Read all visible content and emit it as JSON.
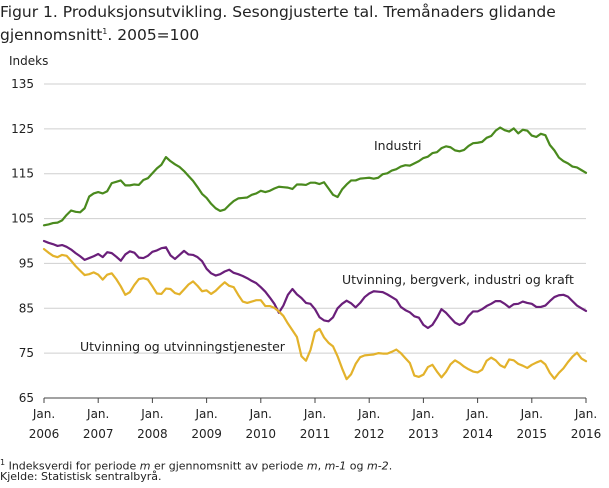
{
  "title_main": "Figur 1. Produksjonsutvikling. Sesongjusterte tal. Tremånaders glidande gjennomsnitt",
  "title_sup": "1",
  "title_suffix": ". 2005=100",
  "footnote": {
    "marker": "1",
    "text_before": " Indeksverdi for periode ",
    "m1": "m",
    "text_mid1": " er gjennomsnitt av periode ",
    "m2": "m",
    "text_mid2": ", ",
    "m3": "m-1",
    "text_mid3": " og ",
    "m4": "m-2",
    "text_end": "."
  },
  "source": "Kjelde: Statistisk sentralbyrå.",
  "colors": {
    "industri": "#4a8a1e",
    "utvinning_bergverk": "#6a1f7a",
    "utvinningstjenester": "#e3b22b",
    "grid": "#cfcfcf",
    "axis": "#444444"
  },
  "chart_data": {
    "type": "line",
    "ylabel": "Indeks",
    "ylim": [
      65,
      135
    ],
    "y_ticks": [
      65,
      75,
      85,
      95,
      105,
      115,
      125,
      135
    ],
    "x_tick_labels": [
      {
        "month": "Jan.",
        "year": "2006"
      },
      {
        "month": "Jan.",
        "year": "2007"
      },
      {
        "month": "Jan.",
        "year": "2008"
      },
      {
        "month": "Jan.",
        "year": "2009"
      },
      {
        "month": "Jan.",
        "year": "2010"
      },
      {
        "month": "Jan.",
        "year": "2011"
      },
      {
        "month": "Jan.",
        "year": "2012"
      },
      {
        "month": "Jan.",
        "year": "2013"
      },
      {
        "month": "Jan.",
        "year": "2014"
      },
      {
        "month": "Jan.",
        "year": "2015"
      },
      {
        "month": "Jan.",
        "year": "2016"
      }
    ],
    "x_start": "2006-01",
    "grid": true,
    "series": [
      {
        "name": "Industri",
        "color_key": "industri",
        "values": [
          103.5,
          103.7,
          104.0,
          104.1,
          104.6,
          105.8,
          106.8,
          106.5,
          106.4,
          107.3,
          109.9,
          110.6,
          110.9,
          110.6,
          111.1,
          112.9,
          113.2,
          113.5,
          112.4,
          112.4,
          112.6,
          112.5,
          113.6,
          114.0,
          115.1,
          116.2,
          117.0,
          118.7,
          117.8,
          117.1,
          116.5,
          115.6,
          114.5,
          113.4,
          112.0,
          110.5,
          109.6,
          108.3,
          107.3,
          106.7,
          107.0,
          108.0,
          108.9,
          109.5,
          109.6,
          109.7,
          110.3,
          110.6,
          111.2,
          110.9,
          111.2,
          111.7,
          112.1,
          112.0,
          111.9,
          111.6,
          112.6,
          112.6,
          112.5,
          113.0,
          113.0,
          112.7,
          113.1,
          111.7,
          110.3,
          109.8,
          111.5,
          112.6,
          113.5,
          113.5,
          113.9,
          114.0,
          114.1,
          113.9,
          114.1,
          114.9,
          115.1,
          115.7,
          116.0,
          116.6,
          116.9,
          116.8,
          117.3,
          117.8,
          118.5,
          118.8,
          119.6,
          119.8,
          120.7,
          121.1,
          120.9,
          120.2,
          120.0,
          120.3,
          121.2,
          121.8,
          121.9,
          122.1,
          123.0,
          123.4,
          124.6,
          125.3,
          124.7,
          124.4,
          125.1,
          124.0,
          124.8,
          124.6,
          123.5,
          123.2,
          123.9,
          123.6,
          121.4,
          120.2,
          118.6,
          117.8,
          117.3,
          116.6,
          116.4,
          115.8,
          115.2
        ]
      },
      {
        "name": "Utvinning, bergverk, industri og kraft",
        "color_key": "utvinning_bergverk",
        "values": [
          100.0,
          99.6,
          99.3,
          98.9,
          99.1,
          98.7,
          98.1,
          97.3,
          96.6,
          95.8,
          96.2,
          96.6,
          97.1,
          96.4,
          97.5,
          97.3,
          96.5,
          95.6,
          97.0,
          97.7,
          97.4,
          96.3,
          96.2,
          96.7,
          97.6,
          97.9,
          98.4,
          98.6,
          96.8,
          96.0,
          96.9,
          97.8,
          97.0,
          96.9,
          96.4,
          95.5,
          93.8,
          92.8,
          92.3,
          92.6,
          93.2,
          93.6,
          92.9,
          92.6,
          92.2,
          91.7,
          91.1,
          90.6,
          89.7,
          88.7,
          87.4,
          86.0,
          84.0,
          85.6,
          88.0,
          89.3,
          88.1,
          87.3,
          86.2,
          86.0,
          84.8,
          83.0,
          82.3,
          82.1,
          83.0,
          85.0,
          86.0,
          86.7,
          86.1,
          85.2,
          86.2,
          87.5,
          88.3,
          88.8,
          88.7,
          88.6,
          88.1,
          87.5,
          86.9,
          85.3,
          84.6,
          84.1,
          83.2,
          82.9,
          81.3,
          80.6,
          81.3,
          82.9,
          84.8,
          84.0,
          82.9,
          81.8,
          81.3,
          81.8,
          83.3,
          84.3,
          84.3,
          84.8,
          85.5,
          86.0,
          86.6,
          86.6,
          86.0,
          85.2,
          85.9,
          86.0,
          86.5,
          86.2,
          86.0,
          85.3,
          85.3,
          85.6,
          86.6,
          87.5,
          87.9,
          88.0,
          87.6,
          86.6,
          85.6,
          85.0,
          84.4
        ]
      },
      {
        "name": "Utvinning og utvinningstjenester",
        "color_key": "utvinningstjenester",
        "values": [
          98.2,
          97.4,
          96.7,
          96.4,
          96.9,
          96.7,
          95.6,
          94.4,
          93.4,
          92.4,
          92.6,
          93.0,
          92.5,
          91.4,
          92.5,
          92.8,
          91.5,
          89.9,
          88.0,
          88.6,
          90.2,
          91.5,
          91.7,
          91.4,
          89.9,
          88.3,
          88.2,
          89.4,
          89.3,
          88.4,
          88.1,
          89.2,
          90.3,
          91.0,
          90.0,
          88.8,
          89.0,
          88.2,
          88.9,
          89.9,
          90.8,
          90.0,
          89.7,
          88.0,
          86.5,
          86.2,
          86.5,
          86.8,
          86.8,
          85.5,
          85.5,
          85.1,
          84.3,
          83.3,
          81.6,
          80.1,
          78.6,
          74.3,
          73.3,
          75.7,
          79.7,
          80.4,
          78.5,
          77.3,
          76.5,
          74.3,
          71.6,
          69.2,
          70.3,
          72.6,
          74.1,
          74.5,
          74.6,
          74.7,
          75.0,
          74.9,
          74.9,
          75.3,
          75.8,
          75.0,
          73.9,
          72.8,
          70.0,
          69.7,
          70.2,
          71.9,
          72.4,
          70.9,
          69.6,
          70.8,
          72.5,
          73.4,
          72.8,
          72.0,
          71.4,
          70.9,
          70.7,
          71.3,
          73.3,
          74.0,
          73.4,
          72.3,
          71.8,
          73.6,
          73.4,
          72.6,
          72.2,
          71.7,
          72.4,
          72.9,
          73.3,
          72.5,
          70.6,
          69.3,
          70.6,
          71.6,
          73.0,
          74.2,
          75.1,
          73.8,
          73.2
        ],
        "values_note": ""
      }
    ],
    "annotations": [
      {
        "text": "Industri",
        "series": "Industri"
      },
      {
        "text": "Utvinning, bergverk, industri og kraft",
        "series": "Utvinning, bergverk, industri og kraft"
      },
      {
        "text": "Utvinning og utvinningstjenester",
        "series": "Utvinning og utvinningstjenester"
      }
    ]
  }
}
